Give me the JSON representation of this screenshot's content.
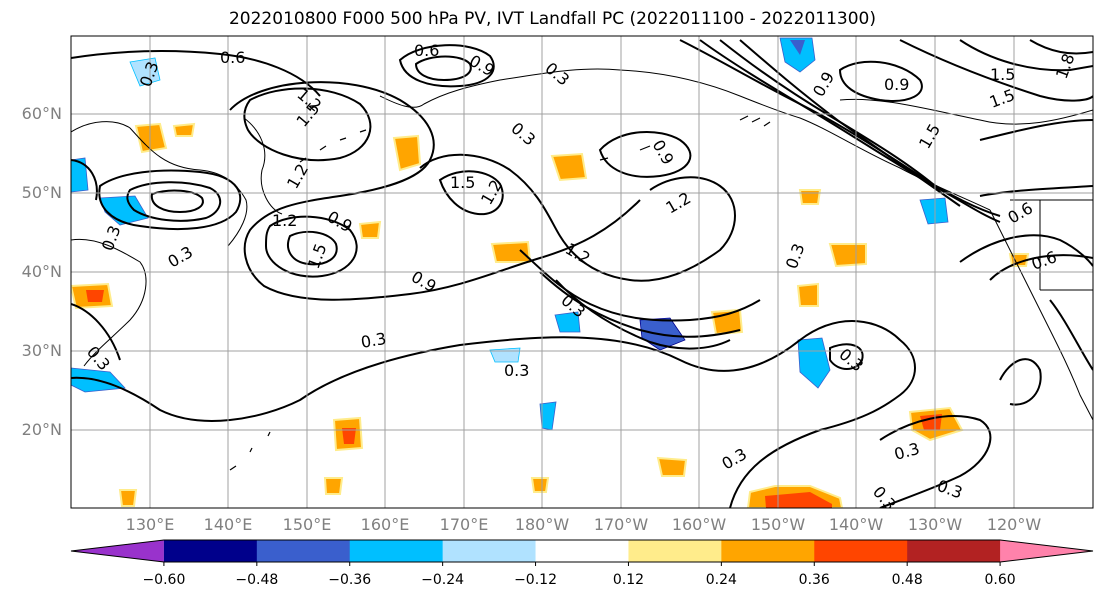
{
  "title": "2022010800 F000 500 hPa PV, IVT Landfall PC (2022011100 - 2022011300)",
  "lat_labels": [
    "60°N",
    "50°N",
    "40°N",
    "30°N",
    "20°N"
  ],
  "lon_labels": [
    "130°E",
    "140°E",
    "150°E",
    "160°E",
    "170°E",
    "180°W",
    "170°W",
    "160°W",
    "150°W",
    "140°W",
    "130°W",
    "120°W"
  ],
  "contour_labels": [
    "0.6",
    "0.6",
    "0.9",
    "0.3",
    "0.3",
    "1.2",
    "1.5",
    "1.2",
    "0.9",
    "1.5",
    "1.2",
    "0.3",
    "0.9",
    "1.2",
    "0.3",
    "1.5",
    "1.2",
    "0.3",
    "0.3",
    "0.9",
    "1.5",
    "1.5",
    "1.8",
    "0.9",
    "0.6",
    "0.6",
    "0.3",
    "0.3",
    "0.3",
    "0.3",
    "0.3",
    "0.3",
    "0.3",
    "1.2",
    "1.5",
    "0.9",
    "0.3",
    "0.3"
  ],
  "colorbar": {
    "ticks": [
      "−0.60",
      "−0.48",
      "−0.36",
      "−0.24",
      "−0.12",
      "0.12",
      "0.24",
      "0.36",
      "0.48",
      "0.60"
    ],
    "colors": [
      "#9932cc",
      "#00008b",
      "#3a5fcd",
      "#00bfff",
      "#b0e2ff",
      "#ffffff",
      "#ffec8b",
      "#ffa500",
      "#ff4500",
      "#b22222",
      "#ff82ab"
    ]
  },
  "colors": {
    "grid": "#a0a0a0",
    "coast": "#000000",
    "contour": "#000000",
    "tick_label": "#808080"
  }
}
